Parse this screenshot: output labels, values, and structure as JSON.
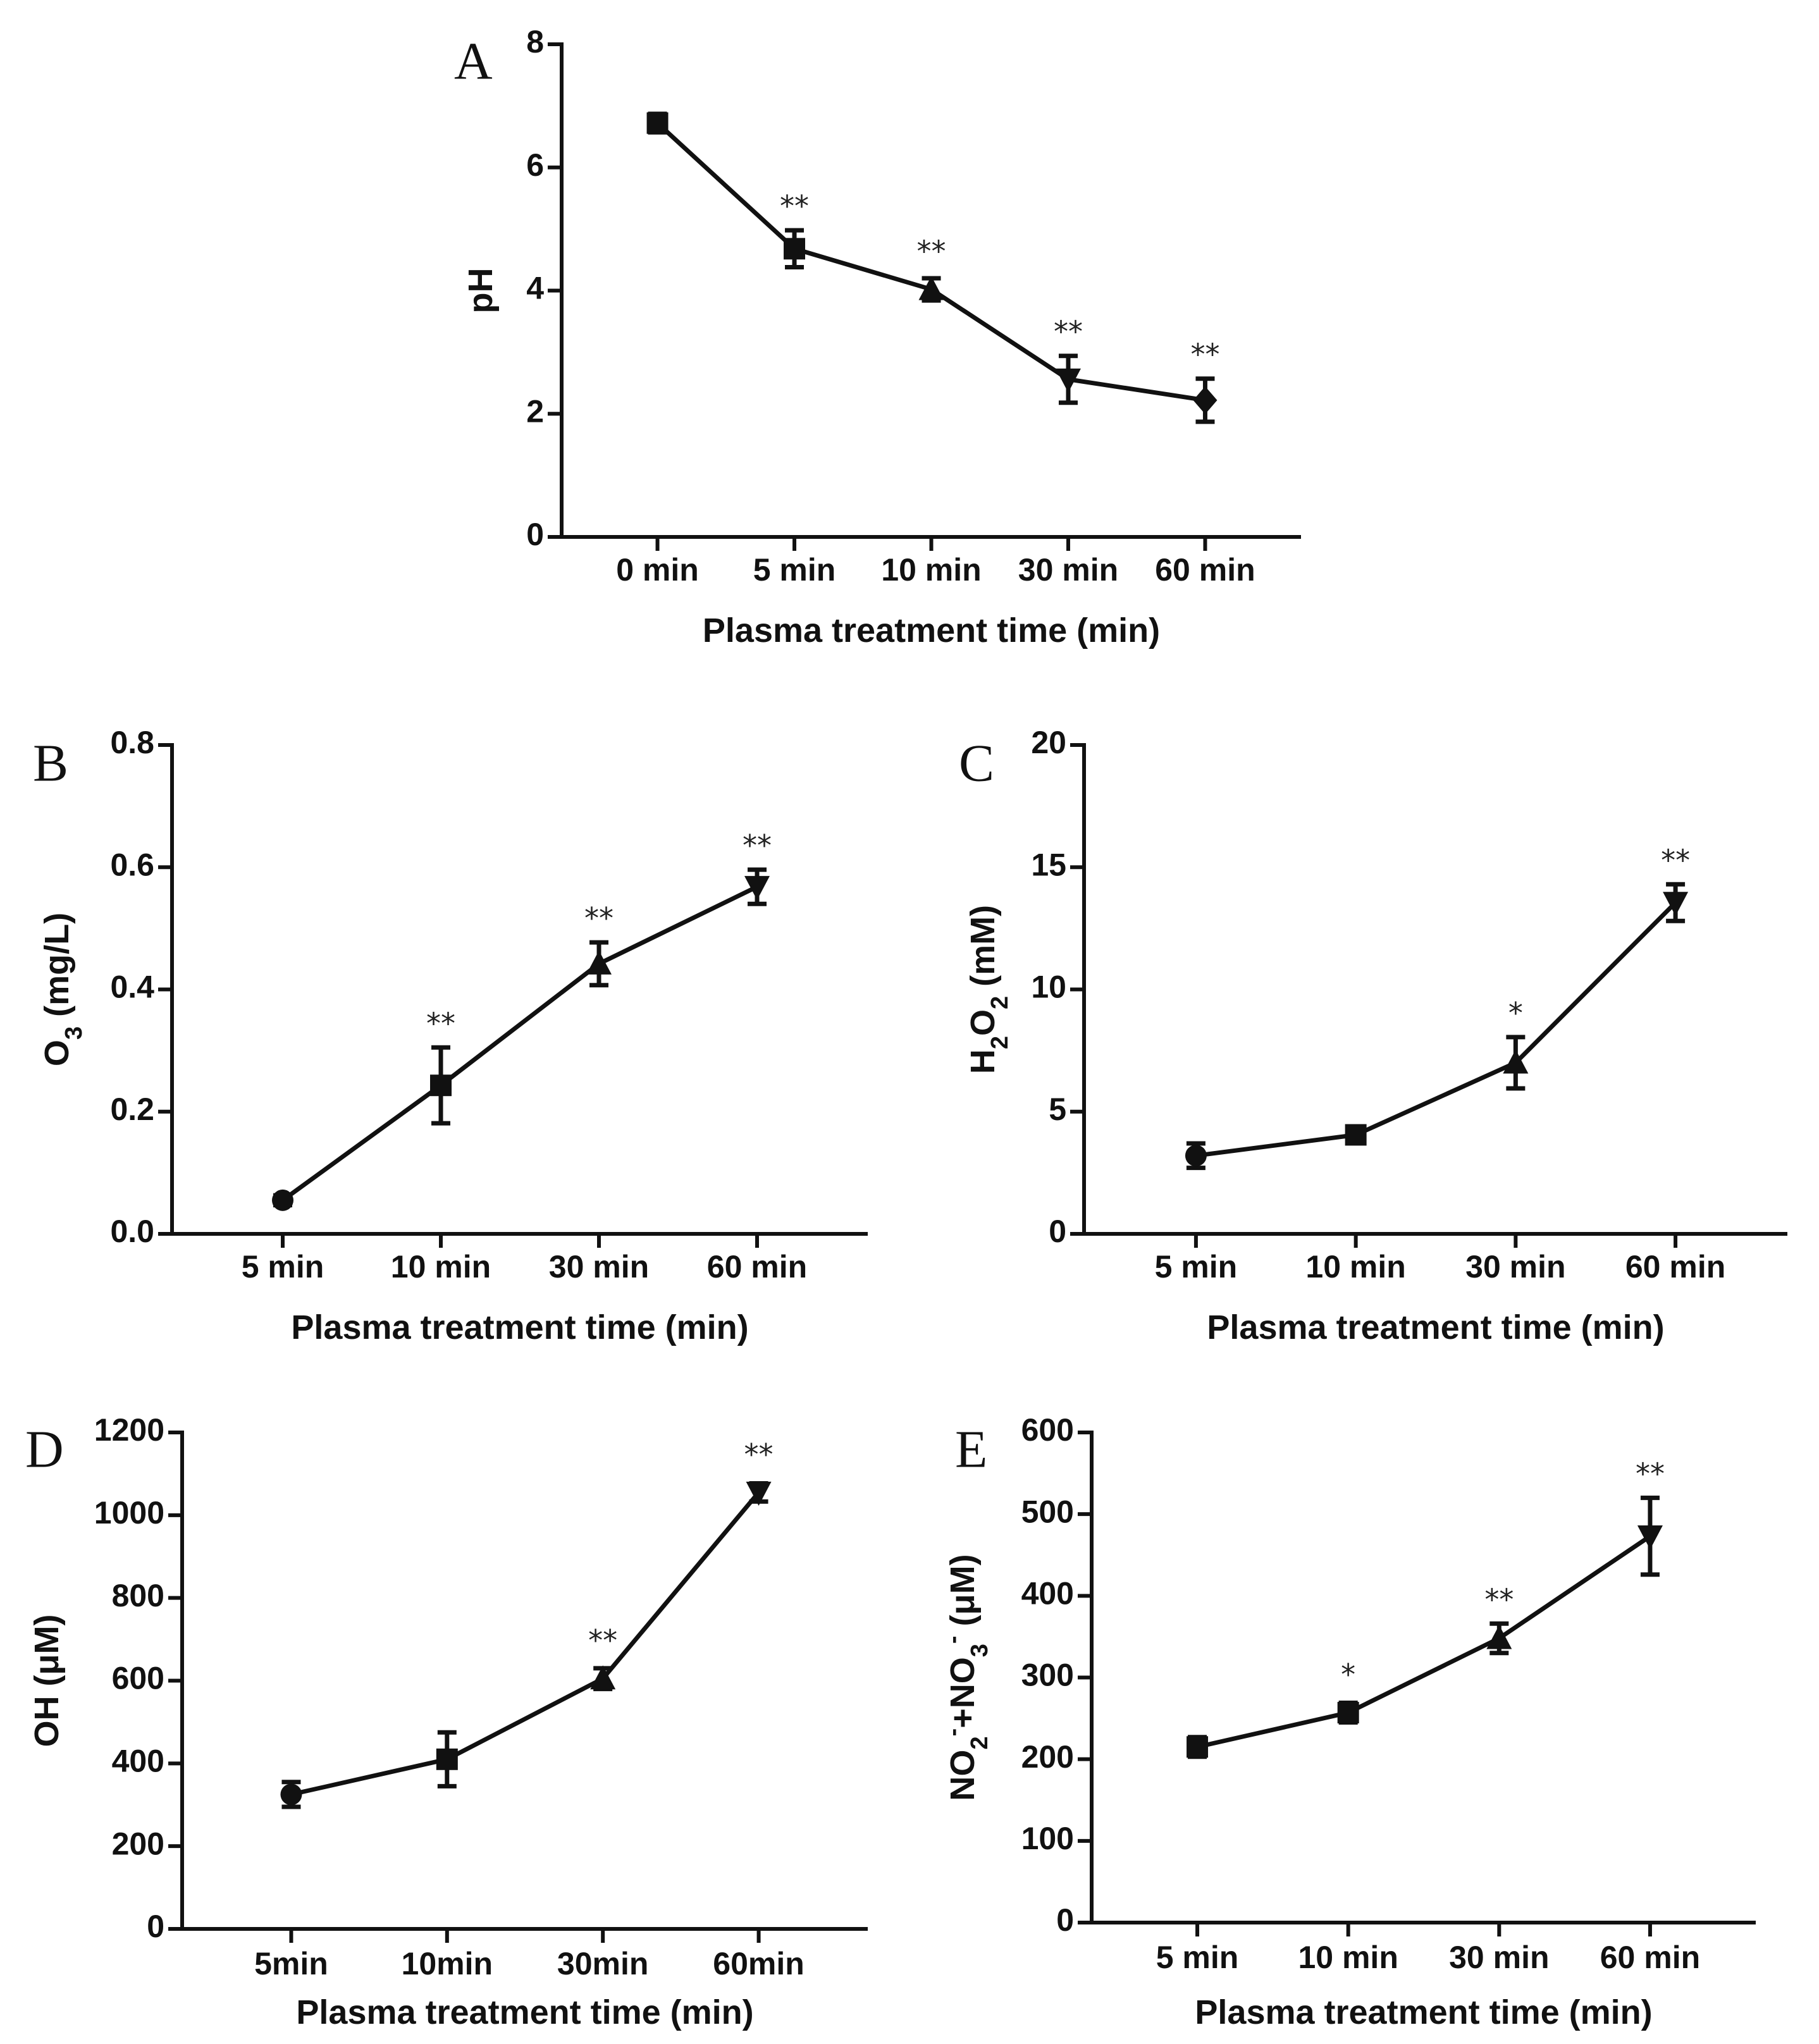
{
  "chart_data": [
    {
      "panel": "A",
      "type": "line",
      "ylabel": "pH",
      "ylabel_parts": [
        {
          "t": "pH"
        }
      ],
      "xlabel": "Plasma treatment time (min)",
      "categories": [
        "0 min",
        "5 min",
        "10 min",
        "30 min",
        "60 min"
      ],
      "values": [
        6.72,
        4.68,
        4.02,
        2.56,
        2.22
      ],
      "errors": [
        0.15,
        0.3,
        0.18,
        0.38,
        0.35
      ],
      "markers": [
        "square",
        "square",
        "triangle-up",
        "triangle-down",
        "diamond"
      ],
      "significance": [
        "",
        "**",
        "**",
        "**",
        "**"
      ],
      "ylim": [
        0,
        8
      ],
      "yticks": [
        "0",
        "2",
        "4",
        "6",
        "8"
      ]
    },
    {
      "panel": "B",
      "type": "line",
      "ylabel": "O3 (mg/L)",
      "ylabel_parts": [
        {
          "t": "O"
        },
        {
          "t": "3",
          "sub": true
        },
        {
          "t": " (mg/L)"
        }
      ],
      "xlabel": "Plasma treatment time (min)",
      "categories": [
        "5 min",
        "10 min",
        "30 min",
        "60 min"
      ],
      "values": [
        0.055,
        0.243,
        0.442,
        0.568
      ],
      "errors": [
        0.008,
        0.062,
        0.035,
        0.028
      ],
      "markers": [
        "circle",
        "square",
        "triangle-up",
        "triangle-down"
      ],
      "significance": [
        "",
        "**",
        "**",
        "**"
      ],
      "ylim": [
        0,
        0.8
      ],
      "yticks": [
        "0.0",
        "0.2",
        "0.4",
        "0.6",
        "0.8"
      ]
    },
    {
      "panel": "C",
      "type": "line",
      "ylabel": "H2O2 (mM)",
      "ylabel_parts": [
        {
          "t": "H"
        },
        {
          "t": "2",
          "sub": true
        },
        {
          "t": "O"
        },
        {
          "t": "2",
          "sub": true
        },
        {
          "t": "  (mM)"
        }
      ],
      "xlabel": "Plasma treatment time (min)",
      "categories": [
        "5 min",
        "10 min",
        "30 min",
        "60 min"
      ],
      "values": [
        3.2,
        4.05,
        7.0,
        13.55
      ],
      "errors": [
        0.5,
        0.25,
        1.05,
        0.75
      ],
      "markers": [
        "circle",
        "square",
        "triangle-up",
        "triangle-down"
      ],
      "significance": [
        "",
        "",
        "*",
        "**"
      ],
      "ylim": [
        0,
        20
      ],
      "yticks": [
        "0",
        "5",
        "10",
        "15",
        "20"
      ]
    },
    {
      "panel": "D",
      "type": "line",
      "ylabel": "OH (μM)",
      "ylabel_parts": [
        {
          "t": "OH  (μM)"
        }
      ],
      "xlabel": "Plasma treatment time (min)",
      "categories": [
        "5min",
        "10min",
        "30min",
        "60min"
      ],
      "values": [
        325,
        410,
        605,
        1055
      ],
      "errors": [
        30,
        65,
        25,
        22
      ],
      "markers": [
        "circle",
        "square",
        "triangle-up",
        "triangle-down"
      ],
      "significance": [
        "",
        "",
        "**",
        "**"
      ],
      "ylim": [
        0,
        1200
      ],
      "yticks": [
        "0",
        "200",
        "400",
        "600",
        "800",
        "1000",
        "1200"
      ]
    },
    {
      "panel": "E",
      "type": "line",
      "ylabel": "NO2-+NO3- (μM)",
      "ylabel_parts": [
        {
          "t": "NO"
        },
        {
          "t": "2",
          "sub": true
        },
        {
          "t": "-",
          "sup": true
        },
        {
          "t": "+NO"
        },
        {
          "t": "3",
          "sub": true
        },
        {
          "t": "-",
          "sup": true
        },
        {
          "t": " (μM)"
        }
      ],
      "xlabel": "Plasma treatment time (min)",
      "categories": [
        "5 min",
        "10 min",
        "30 min",
        "60 min"
      ],
      "values": [
        215,
        257,
        348,
        473
      ],
      "errors": [
        12,
        12,
        18,
        47
      ],
      "markers": [
        "square",
        "square",
        "triangle-up",
        "triangle-down"
      ],
      "significance": [
        "",
        "*",
        "**",
        "**"
      ],
      "ylim": [
        0,
        600
      ],
      "yticks": [
        "0",
        "100",
        "200",
        "300",
        "400",
        "500",
        "600"
      ]
    }
  ]
}
